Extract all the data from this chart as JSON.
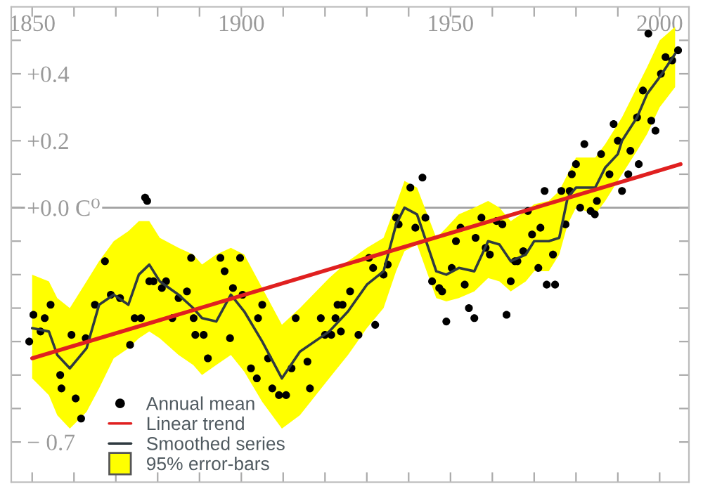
{
  "chart_data": {
    "type": "scatter",
    "xlim": [
      1845,
      2007
    ],
    "ylim": [
      -0.82,
      0.6
    ],
    "xticks": [
      {
        "value": 1850,
        "label": "1850"
      },
      {
        "value": 1860,
        "label": null
      },
      {
        "value": 1870,
        "label": null
      },
      {
        "value": 1880,
        "label": null
      },
      {
        "value": 1890,
        "label": null
      },
      {
        "value": 1900,
        "label": "1900"
      },
      {
        "value": 1910,
        "label": null
      },
      {
        "value": 1920,
        "label": null
      },
      {
        "value": 1930,
        "label": null
      },
      {
        "value": 1940,
        "label": null
      },
      {
        "value": 1950,
        "label": "1950"
      },
      {
        "value": 1960,
        "label": null
      },
      {
        "value": 1970,
        "label": null
      },
      {
        "value": 1980,
        "label": null
      },
      {
        "value": 1990,
        "label": null
      },
      {
        "value": 2000,
        "label": "2000"
      }
    ],
    "yticks": [
      {
        "value": 0.5,
        "label": null
      },
      {
        "value": 0.4,
        "label": "+0.4"
      },
      {
        "value": 0.3,
        "label": null
      },
      {
        "value": 0.2,
        "label": "+0.2"
      },
      {
        "value": 0.1,
        "label": null
      },
      {
        "value": 0.0,
        "label": "+0.0 C⁰"
      },
      {
        "value": -0.1,
        "label": null
      },
      {
        "value": -0.2,
        "label": null
      },
      {
        "value": -0.3,
        "label": null
      },
      {
        "value": -0.4,
        "label": null
      },
      {
        "value": -0.5,
        "label": null
      },
      {
        "value": -0.6,
        "label": null
      },
      {
        "value": -0.7,
        "label": "− 0.7"
      }
    ],
    "ref_lines": [
      {
        "axis": "y",
        "value": 0.0,
        "color": "#a0a0a0"
      }
    ],
    "annotations": [
      "95% error-bars"
    ],
    "grid": false,
    "legend": "bottom left",
    "series": [
      {
        "type": "scatter",
        "name": "Annual mean",
        "color": "#000000",
        "marker": "circle",
        "x": [
          1849.3,
          1850.3,
          1852,
          1853,
          1854.4,
          1856.7,
          1857,
          1859.4,
          1860.4,
          1861.7,
          1862.8,
          1865,
          1867.4,
          1868.8,
          1871,
          1873.4,
          1874.5,
          1876,
          1877,
          1877.5,
          1878,
          1879,
          1881,
          1882,
          1883.5,
          1885,
          1887,
          1888,
          1888.6,
          1889,
          1891,
          1892,
          1895,
          1896,
          1897.3,
          1898,
          1899.7,
          1900.3,
          1902.3,
          1903.7,
          1904,
          1905,
          1906.4,
          1907.4,
          1909,
          1910.7,
          1912,
          1913,
          1915.8,
          1916.4,
          1919,
          1920,
          1921.5,
          1922.5,
          1923,
          1923.8,
          1924.2,
          1926,
          1928,
          1930.5,
          1931.5,
          1932,
          1934,
          1935,
          1937,
          1937.6,
          1940.4,
          1941.6,
          1943.3,
          1944,
          1945.6,
          1947.3,
          1948,
          1949,
          1950.3,
          1951.3,
          1952.4,
          1953.4,
          1954.4,
          1955.7,
          1956,
          1957.4,
          1958.4,
          1959.4,
          1961,
          1962.4,
          1963.4,
          1964.4,
          1965.4,
          1966,
          1967.4,
          1968.5,
          1969.5,
          1971,
          1971.5,
          1972.5,
          1973,
          1974.5,
          1975,
          1976.5,
          1977.5,
          1978.5,
          1979,
          1980,
          1981,
          1982,
          1983.5,
          1984.5,
          1985,
          1986,
          1988,
          1989,
          1990,
          1991,
          1992.5,
          1993,
          1994.6,
          1995,
          1996,
          1997.3,
          1998,
          1999,
          2000.3,
          2001.4,
          2003,
          2004.4
        ],
        "values": [
          -0.4,
          -0.32,
          -0.37,
          -0.33,
          -0.29,
          -0.5,
          -0.54,
          -0.38,
          -0.57,
          -0.63,
          -0.39,
          -0.29,
          -0.16,
          -0.26,
          -0.27,
          -0.41,
          -0.33,
          -0.33,
          0.03,
          0.02,
          -0.22,
          -0.22,
          -0.24,
          -0.22,
          -0.33,
          -0.27,
          -0.25,
          -0.15,
          -0.33,
          -0.38,
          -0.38,
          -0.45,
          -0.15,
          -0.19,
          -0.39,
          -0.24,
          -0.15,
          -0.26,
          -0.48,
          -0.51,
          -0.33,
          -0.29,
          -0.45,
          -0.54,
          -0.56,
          -0.56,
          -0.48,
          -0.33,
          -0.46,
          -0.54,
          -0.33,
          -0.38,
          -0.38,
          -0.33,
          -0.29,
          -0.37,
          -0.29,
          -0.25,
          -0.38,
          -0.15,
          -0.18,
          -0.35,
          -0.2,
          -0.17,
          -0.03,
          -0.05,
          0.06,
          -0.06,
          0.09,
          -0.03,
          -0.22,
          -0.24,
          -0.25,
          -0.34,
          -0.18,
          -0.1,
          -0.06,
          -0.23,
          -0.3,
          -0.33,
          -0.09,
          -0.03,
          -0.12,
          -0.14,
          -0.04,
          -0.05,
          -0.32,
          -0.22,
          -0.16,
          -0.16,
          -0.13,
          -0.01,
          -0.08,
          -0.18,
          -0.06,
          0.05,
          -0.23,
          -0.14,
          -0.23,
          0.05,
          -0.05,
          0.05,
          0.1,
          0.13,
          0.0,
          0.19,
          -0.01,
          -0.02,
          0.02,
          0.16,
          0.1,
          0.25,
          0.2,
          0.05,
          0.1,
          0.17,
          0.27,
          0.13,
          0.35,
          0.52,
          0.26,
          0.23,
          0.4,
          0.45,
          0.44,
          0.47
        ]
      },
      {
        "type": "line",
        "name": "Linear trend",
        "color": "#e02020",
        "x": [
          1850,
          2005
        ],
        "values": [
          -0.45,
          0.13
        ]
      },
      {
        "type": "line",
        "name": "Smoothed series",
        "color": "#2f3a40",
        "x": [
          1850,
          1854,
          1856,
          1859,
          1863,
          1866,
          1869.5,
          1873,
          1875.5,
          1878,
          1880.5,
          1885,
          1888.5,
          1890.6,
          1894,
          1897.5,
          1900.7,
          1905,
          1909.7,
          1914,
          1921,
          1925.5,
          1930,
          1934,
          1937,
          1939,
          1942,
          1946.6,
          1949,
          1952,
          1955.7,
          1959,
          1961.7,
          1964.4,
          1968,
          1970,
          1973.5,
          1976,
          1978,
          1980,
          1984.6,
          1987,
          1990,
          1991,
          1994.6,
          1997,
          2000,
          2003.7
        ],
        "values": [
          -0.36,
          -0.37,
          -0.44,
          -0.48,
          -0.42,
          -0.29,
          -0.26,
          -0.29,
          -0.2,
          -0.17,
          -0.22,
          -0.26,
          -0.3,
          -0.33,
          -0.34,
          -0.26,
          -0.31,
          -0.4,
          -0.51,
          -0.43,
          -0.37,
          -0.31,
          -0.23,
          -0.19,
          -0.05,
          0.0,
          -0.02,
          -0.19,
          -0.2,
          -0.18,
          -0.19,
          -0.1,
          -0.11,
          -0.16,
          -0.14,
          -0.1,
          -0.1,
          -0.09,
          0.03,
          0.06,
          0.06,
          0.12,
          0.16,
          0.2,
          0.27,
          0.34,
          0.39,
          0.46
        ],
        "upper": [
          -0.2,
          -0.22,
          -0.27,
          -0.3,
          -0.22,
          -0.16,
          -0.1,
          -0.07,
          -0.04,
          -0.04,
          -0.09,
          -0.12,
          -0.14,
          -0.17,
          -0.14,
          -0.12,
          -0.14,
          -0.24,
          -0.35,
          -0.3,
          -0.21,
          -0.16,
          -0.12,
          -0.09,
          0.01,
          0.08,
          0.06,
          -0.09,
          -0.06,
          -0.02,
          0.0,
          0.02,
          0.0,
          -0.04,
          -0.01,
          0.01,
          0.02,
          0.05,
          0.1,
          0.15,
          0.15,
          0.19,
          0.25,
          0.27,
          0.36,
          0.42,
          0.5,
          0.54
        ],
        "lower": [
          -0.51,
          -0.56,
          -0.62,
          -0.66,
          -0.61,
          -0.54,
          -0.45,
          -0.42,
          -0.39,
          -0.37,
          -0.39,
          -0.44,
          -0.47,
          -0.5,
          -0.47,
          -0.44,
          -0.49,
          -0.58,
          -0.66,
          -0.62,
          -0.51,
          -0.44,
          -0.36,
          -0.3,
          -0.19,
          -0.13,
          -0.11,
          -0.27,
          -0.28,
          -0.27,
          -0.25,
          -0.21,
          -0.22,
          -0.25,
          -0.22,
          -0.19,
          -0.19,
          -0.14,
          -0.05,
          0.0,
          -0.02,
          0.02,
          0.08,
          0.1,
          0.17,
          0.22,
          0.3,
          0.36
        ]
      }
    ]
  }
}
